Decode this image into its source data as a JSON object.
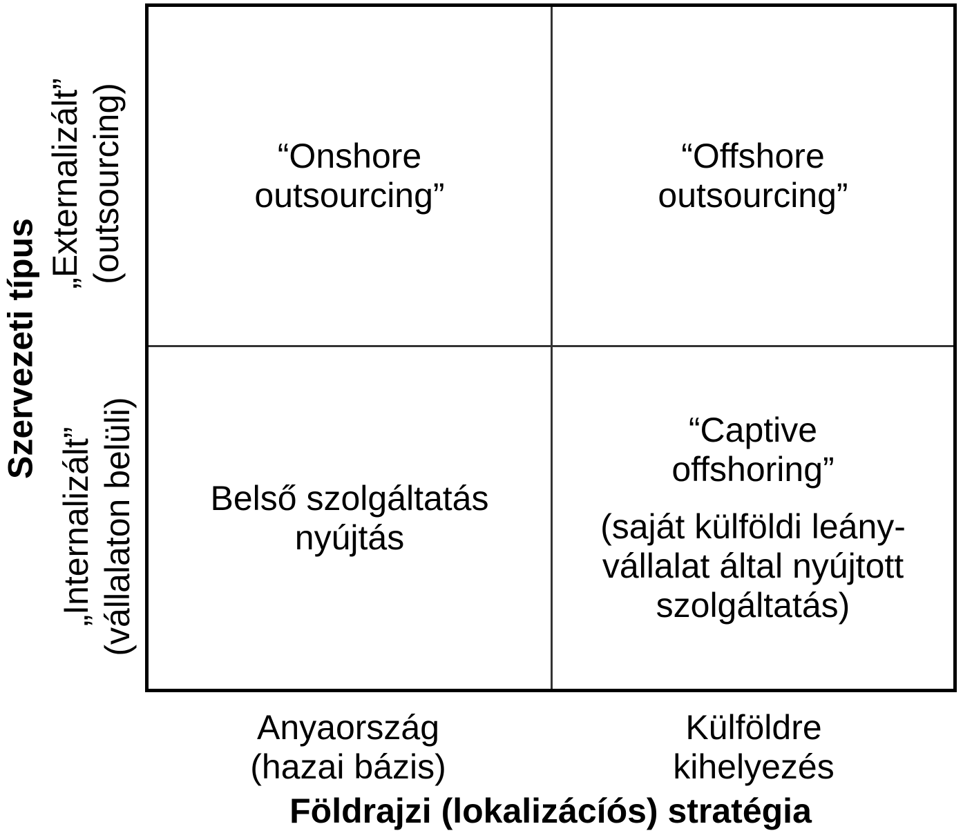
{
  "y_axis": {
    "title": "Szervezeti típus",
    "top_category": "„Externalizált”\n(outsourcing)",
    "bottom_category": "„Internalizált”\n(vállalaton belüli)"
  },
  "x_axis": {
    "title": "Földrajzi (lokalizácíós) stratégia",
    "left_category": "Anyaország\n(hazai bázis)",
    "right_category": "Külföldre kihelyezés"
  },
  "quadrants": {
    "top_left": "“Onshore\noutsourcing”",
    "top_right": "“Offshore\noutsourcing”",
    "bottom_left": "Belső szolgáltatás\nnyújtás",
    "bottom_right_title": "“Captive\noffshoring”",
    "bottom_right_note": "(saját külföldi leány-\nvállalat által nyújtott\nszolgáltatás)"
  },
  "colors": {
    "background": "#ffffff",
    "outer_border": "#000000",
    "inner_divider": "#333333",
    "text": "#000000"
  }
}
